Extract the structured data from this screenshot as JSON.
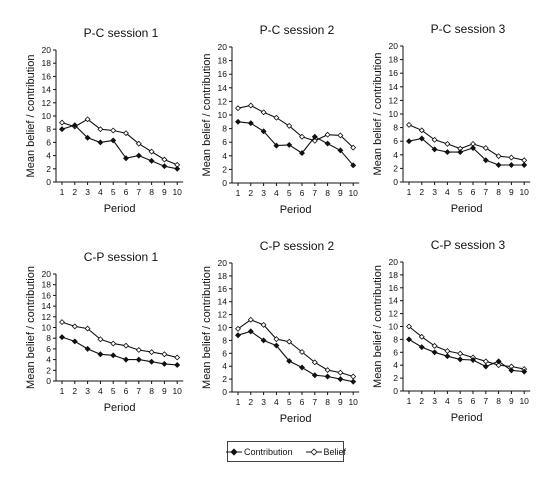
{
  "chart_data": [
    {
      "type": "line",
      "title": "P-C session 1",
      "xlabel": "Period",
      "ylabel": "Mean belief / contribution",
      "x": [
        1,
        2,
        3,
        4,
        5,
        6,
        7,
        8,
        9,
        10
      ],
      "ylim": [
        0,
        20
      ],
      "yticks": [
        0,
        2,
        4,
        6,
        8,
        10,
        12,
        14,
        16,
        18,
        20
      ],
      "grid": false,
      "series": [
        {
          "name": "Contribution",
          "values": [
            8.0,
            8.6,
            6.7,
            6.0,
            6.3,
            3.6,
            4.0,
            3.2,
            2.4,
            2.0
          ]
        },
        {
          "name": "Belief",
          "values": [
            9.0,
            8.4,
            9.5,
            8.0,
            7.8,
            7.4,
            5.8,
            4.6,
            3.4,
            2.6
          ]
        }
      ]
    },
    {
      "type": "line",
      "title": "P-C session 2",
      "xlabel": "Period",
      "ylabel": "Mean belief / contribution",
      "x": [
        1,
        2,
        3,
        4,
        5,
        6,
        7,
        8,
        9,
        10
      ],
      "ylim": [
        0,
        20
      ],
      "yticks": [
        0,
        2,
        4,
        6,
        8,
        10,
        12,
        14,
        16,
        18,
        20
      ],
      "grid": false,
      "series": [
        {
          "name": "Contribution",
          "values": [
            9.0,
            8.8,
            7.6,
            5.5,
            5.6,
            4.4,
            6.8,
            5.8,
            4.8,
            2.6
          ]
        },
        {
          "name": "Belief",
          "values": [
            11.0,
            11.4,
            10.4,
            9.6,
            8.4,
            6.8,
            6.2,
            7.1,
            7.0,
            5.2
          ]
        }
      ]
    },
    {
      "type": "line",
      "title": "P-C session 3",
      "xlabel": "Period",
      "ylabel": "Mean belief / contribution",
      "x": [
        1,
        2,
        3,
        4,
        5,
        6,
        7,
        8,
        9,
        10
      ],
      "ylim": [
        0,
        20
      ],
      "yticks": [
        0,
        2,
        4,
        6,
        8,
        10,
        12,
        14,
        16,
        18,
        20
      ],
      "grid": false,
      "series": [
        {
          "name": "Contribution",
          "values": [
            6.0,
            6.4,
            4.8,
            4.4,
            4.4,
            5.0,
            3.2,
            2.5,
            2.5,
            2.5
          ]
        },
        {
          "name": "Belief",
          "values": [
            8.4,
            7.6,
            6.2,
            5.6,
            4.9,
            5.6,
            5.0,
            3.8,
            3.6,
            3.2
          ]
        }
      ]
    },
    {
      "type": "line",
      "title": "C-P session 1",
      "xlabel": "Period",
      "ylabel": "Mean belief / contribution",
      "x": [
        1,
        2,
        3,
        4,
        5,
        6,
        7,
        8,
        9,
        10
      ],
      "ylim": [
        0,
        20
      ],
      "yticks": [
        0,
        2,
        4,
        6,
        8,
        10,
        12,
        14,
        16,
        18,
        20
      ],
      "grid": false,
      "series": [
        {
          "name": "Contribution",
          "values": [
            8.2,
            7.4,
            6.0,
            5.0,
            4.8,
            4.0,
            4.0,
            3.6,
            3.2,
            3.0
          ]
        },
        {
          "name": "Belief",
          "values": [
            11.0,
            10.2,
            9.8,
            7.8,
            7.0,
            6.6,
            5.8,
            5.4,
            5.0,
            4.4
          ]
        }
      ]
    },
    {
      "type": "line",
      "title": "C-P session 2",
      "xlabel": "Period",
      "ylabel": "Mean belief / contribution",
      "x": [
        1,
        2,
        3,
        4,
        5,
        6,
        7,
        8,
        9,
        10
      ],
      "ylim": [
        0,
        20
      ],
      "yticks": [
        0,
        2,
        4,
        6,
        8,
        10,
        12,
        14,
        16,
        18,
        20
      ],
      "grid": false,
      "series": [
        {
          "name": "Contribution",
          "values": [
            8.8,
            9.4,
            8.0,
            7.2,
            4.8,
            3.8,
            2.6,
            2.4,
            2.0,
            1.6
          ]
        },
        {
          "name": "Belief",
          "values": [
            9.8,
            11.2,
            10.4,
            8.2,
            7.8,
            6.2,
            4.6,
            3.4,
            3.0,
            2.4
          ]
        }
      ]
    },
    {
      "type": "line",
      "title": "C-P session 3",
      "xlabel": "Period",
      "ylabel": "Mean belief / contribution",
      "x": [
        1,
        2,
        3,
        4,
        5,
        6,
        7,
        8,
        9,
        10
      ],
      "ylim": [
        0,
        20
      ],
      "yticks": [
        0,
        2,
        4,
        6,
        8,
        10,
        12,
        14,
        16,
        18,
        20
      ],
      "grid": false,
      "series": [
        {
          "name": "Contribution",
          "values": [
            8.0,
            6.8,
            6.0,
            5.4,
            4.9,
            4.8,
            3.8,
            4.6,
            3.2,
            3.0
          ]
        },
        {
          "name": "Belief",
          "values": [
            10.0,
            8.4,
            7.0,
            6.2,
            5.8,
            5.2,
            4.6,
            4.0,
            3.8,
            3.4
          ]
        }
      ]
    }
  ],
  "legend": {
    "placement": "bottom-center",
    "items": [
      {
        "label": "Contribution",
        "marker": "filled-diamond"
      },
      {
        "label": "Belief",
        "marker": "open-diamond"
      }
    ]
  },
  "colors": {
    "line": "#111111",
    "open_marker_fill": "#ffffff"
  }
}
